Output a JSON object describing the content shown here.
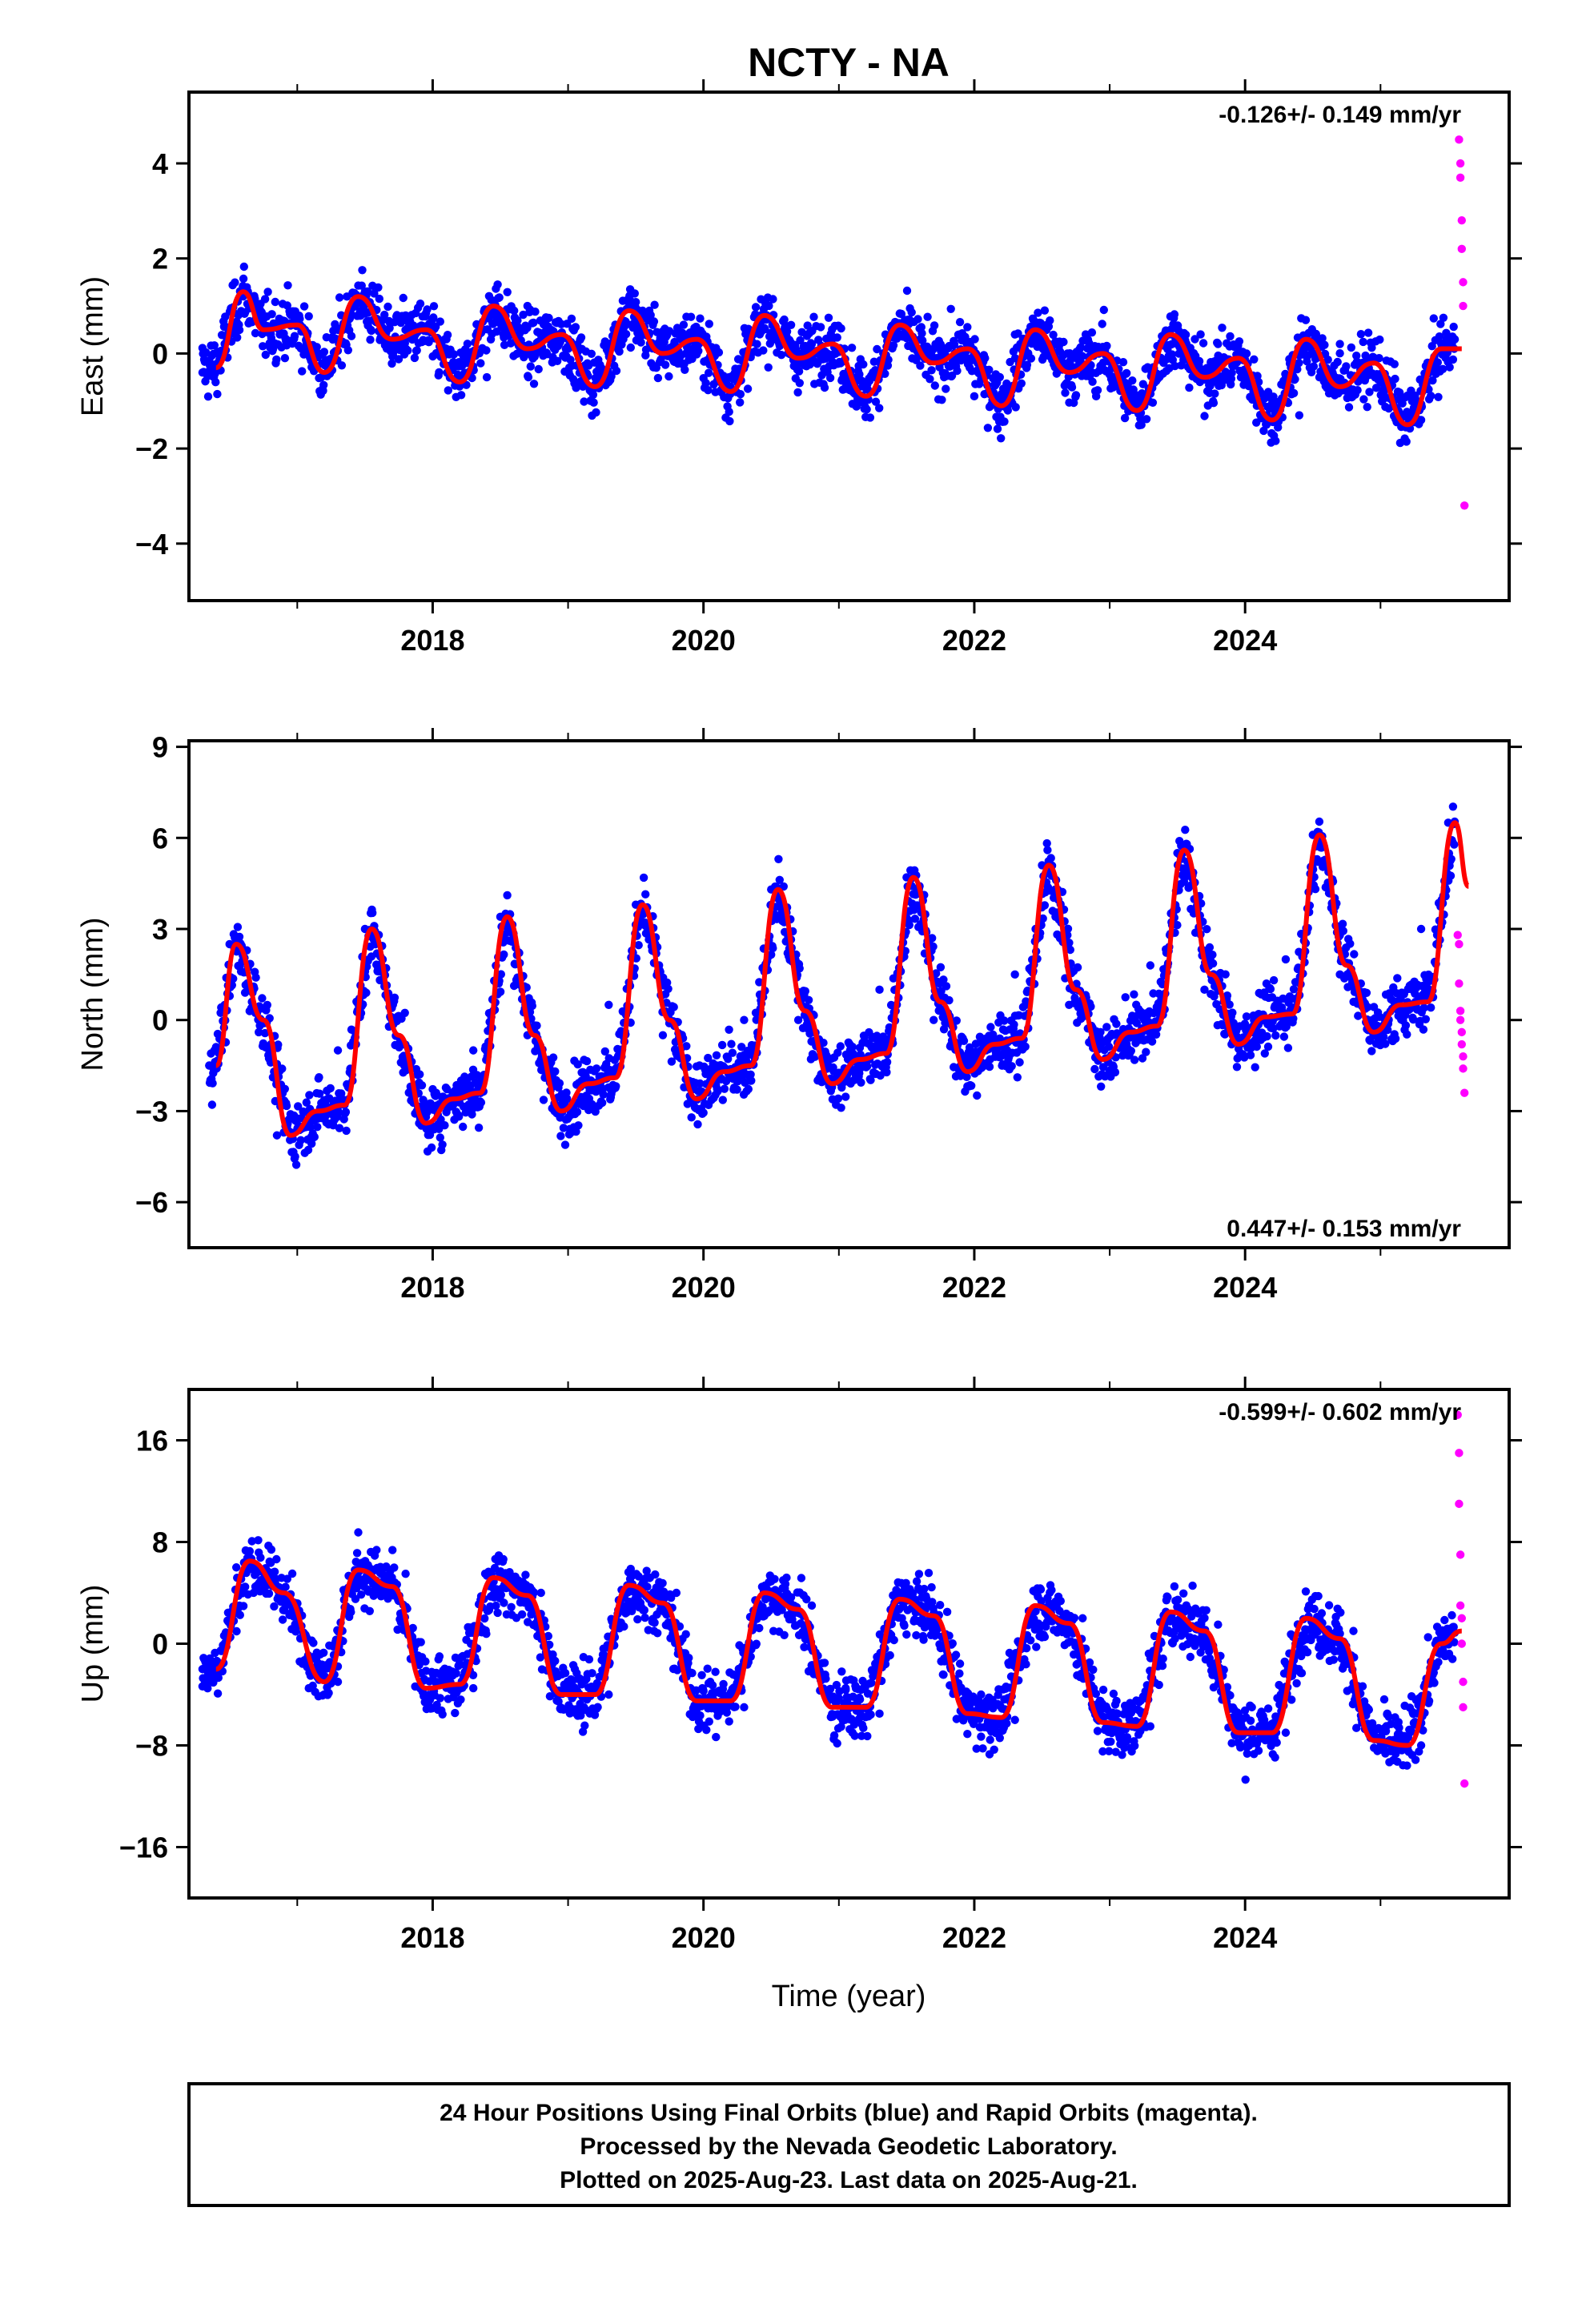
{
  "title": "NCTY - NA",
  "xlabel": "Time (year)",
  "footer": {
    "line1": "24 Hour Positions Using Final Orbits (blue) and Rapid Orbits (magenta).",
    "line2": "Processed by the Nevada Geodetic Laboratory.",
    "line3": "Plotted on 2025-Aug-23. Last data on 2025-Aug-21."
  },
  "colors": {
    "final_points": "#0000ff",
    "rapid_points": "#ff00ff",
    "model_fit": "#ff0000",
    "frame": "#000000"
  },
  "chart_data": [
    {
      "type": "scatter",
      "ylabel": "East (mm)",
      "rate": "-0.126+/- 0.149 mm/yr",
      "xlim": [
        2016.2,
        2025.95
      ],
      "ylim": [
        -5.2,
        5.5
      ],
      "xticks": [
        2018,
        2020,
        2022,
        2024
      ],
      "xtick_labels": [
        "2018",
        "2020",
        "2022",
        "2024"
      ],
      "yticks": [
        -4,
        -2,
        0,
        2,
        4
      ],
      "ytick_labels": [
        "−4",
        "−2",
        "0",
        "2",
        "4"
      ],
      "legend": "none",
      "grid": false,
      "series": [
        {
          "name": "Final Orbits",
          "color": "#0000ff",
          "kind": "points",
          "x": [
            2016.3,
            2016.6,
            2016.9,
            2017.2,
            2017.5,
            2017.8,
            2018.1,
            2018.4,
            2018.7,
            2019.0,
            2019.3,
            2019.6,
            2019.9,
            2020.2,
            2020.5,
            2020.8,
            2021.1,
            2021.4,
            2021.7,
            2022.0,
            2022.3,
            2022.6,
            2022.9,
            2023.2,
            2023.5,
            2023.8,
            2024.1,
            2024.4,
            2024.7,
            2025.0,
            2025.3,
            2025.5
          ],
          "y": [
            -0.4,
            1.2,
            0.6,
            -0.2,
            1.3,
            0.8,
            0.1,
            -0.5,
            1.0,
            0.3,
            -0.6,
            0.9,
            0.4,
            -0.7,
            0.7,
            0.2,
            -0.8,
            0.6,
            0.1,
            -0.9,
            0.4,
            -0.1,
            -0.9,
            -1.0,
            0.3,
            0.2,
            -0.6,
            -1.3,
            0.2,
            -0.6,
            -1.4,
            0.2
          ]
        },
        {
          "name": "Rapid Orbits",
          "color": "#ff00ff",
          "kind": "points",
          "x": [
            2025.58,
            2025.59,
            2025.59,
            2025.6,
            2025.6,
            2025.61,
            2025.61,
            2025.62
          ],
          "y": [
            4.5,
            4.0,
            3.7,
            2.8,
            2.2,
            1.5,
            1.0,
            -3.2
          ]
        },
        {
          "name": "Model fit",
          "color": "#ff0000",
          "kind": "line",
          "x": [
            2016.4,
            2016.6,
            2016.75,
            2017.0,
            2017.2,
            2017.45,
            2017.7,
            2017.95,
            2018.2,
            2018.45,
            2018.7,
            2018.95,
            2019.2,
            2019.45,
            2019.7,
            2019.95,
            2020.2,
            2020.45,
            2020.7,
            2020.95,
            2021.2,
            2021.45,
            2021.7,
            2021.95,
            2022.2,
            2022.45,
            2022.7,
            2022.95,
            2023.2,
            2023.45,
            2023.7,
            2023.95,
            2024.2,
            2024.45,
            2024.7,
            2024.95,
            2025.2,
            2025.45,
            2025.6
          ],
          "y": [
            -0.3,
            1.3,
            0.5,
            0.6,
            -0.4,
            1.2,
            0.3,
            0.5,
            -0.6,
            1.0,
            0.1,
            0.4,
            -0.7,
            0.9,
            0.0,
            0.3,
            -0.8,
            0.8,
            -0.1,
            0.2,
            -0.9,
            0.6,
            -0.2,
            0.1,
            -1.1,
            0.5,
            -0.4,
            0.0,
            -1.2,
            0.4,
            -0.5,
            -0.1,
            -1.4,
            0.3,
            -0.7,
            -0.2,
            -1.5,
            0.1,
            0.1
          ]
        }
      ]
    },
    {
      "type": "scatter",
      "ylabel": "North (mm)",
      "rate": "0.447+/- 0.153 mm/yr",
      "xlim": [
        2016.2,
        2025.95
      ],
      "ylim": [
        -7.5,
        9.2
      ],
      "xticks": [
        2018,
        2020,
        2022,
        2024
      ],
      "xtick_labels": [
        "2018",
        "2020",
        "2022",
        "2024"
      ],
      "yticks": [
        -6,
        -3,
        0,
        3,
        6,
        9
      ],
      "ytick_labels": [
        "−6",
        "−3",
        "0",
        "3",
        "6",
        "9"
      ],
      "legend": "none",
      "grid": false,
      "series": [
        {
          "name": "Final Orbits",
          "color": "#0000ff",
          "kind": "points",
          "x": [
            2016.35,
            2016.5,
            2016.65,
            2016.85,
            2017.1,
            2017.3,
            2017.5,
            2017.7,
            2017.9,
            2018.1,
            2018.3,
            2018.5,
            2018.7,
            2018.9,
            2019.1,
            2019.3,
            2019.5,
            2019.7,
            2019.9,
            2020.1,
            2020.3,
            2020.5,
            2020.7,
            2020.9,
            2021.1,
            2021.3,
            2021.5,
            2021.7,
            2021.9,
            2022.1,
            2022.3,
            2022.5,
            2022.7,
            2022.9,
            2023.1,
            2023.3,
            2023.5,
            2023.7,
            2023.9,
            2024.1,
            2024.3,
            2024.5,
            2024.7,
            2024.9,
            2025.1,
            2025.3,
            2025.5
          ],
          "y": [
            -1.5,
            2.5,
            1.0,
            -3.8,
            -3.0,
            -1.0,
            3.0,
            0.0,
            -3.4,
            -2.6,
            -1.0,
            3.4,
            -0.5,
            -3.0,
            -2.0,
            0.5,
            3.8,
            -0.5,
            -2.5,
            -1.5,
            0.0,
            4.3,
            0.0,
            -2.0,
            -1.2,
            1.0,
            4.7,
            0.0,
            -1.5,
            -0.6,
            1.5,
            5.1,
            0.5,
            -1.2,
            -0.3,
            1.8,
            5.5,
            1.0,
            -0.8,
            0.2,
            2.0,
            6.1,
            1.5,
            -0.3,
            0.6,
            3.0,
            6.5
          ]
        },
        {
          "name": "Rapid Orbits",
          "color": "#ff00ff",
          "kind": "points",
          "x": [
            2025.57,
            2025.58,
            2025.58,
            2025.59,
            2025.59,
            2025.6,
            2025.6,
            2025.61,
            2025.61,
            2025.62
          ],
          "y": [
            2.8,
            2.5,
            1.2,
            0.3,
            0.0,
            -0.4,
            -0.8,
            -1.2,
            -1.6,
            -2.4
          ]
        },
        {
          "name": "Model fit",
          "color": "#ff0000",
          "kind": "line",
          "x": [
            2016.4,
            2016.55,
            2016.75,
            2016.95,
            2017.15,
            2017.35,
            2017.55,
            2017.75,
            2017.95,
            2018.15,
            2018.35,
            2018.55,
            2018.75,
            2018.95,
            2019.15,
            2019.35,
            2019.55,
            2019.75,
            2019.95,
            2020.15,
            2020.35,
            2020.55,
            2020.75,
            2020.95,
            2021.15,
            2021.35,
            2021.55,
            2021.75,
            2021.95,
            2022.15,
            2022.35,
            2022.55,
            2022.75,
            2022.95,
            2023.15,
            2023.35,
            2023.55,
            2023.75,
            2023.95,
            2024.15,
            2024.35,
            2024.55,
            2024.75,
            2024.95,
            2025.15,
            2025.35,
            2025.55,
            2025.65
          ],
          "y": [
            -1.5,
            2.5,
            0.0,
            -3.8,
            -3.0,
            -2.8,
            3.0,
            -0.5,
            -3.4,
            -2.6,
            -2.4,
            3.4,
            -0.5,
            -3.0,
            -2.1,
            -1.9,
            3.8,
            0.0,
            -2.6,
            -1.7,
            -1.5,
            4.3,
            0.3,
            -2.1,
            -1.3,
            -1.1,
            4.7,
            0.6,
            -1.7,
            -0.8,
            -0.6,
            5.1,
            1.0,
            -1.3,
            -0.4,
            -0.2,
            5.6,
            1.5,
            -0.8,
            0.1,
            0.2,
            6.1,
            1.8,
            -0.4,
            0.5,
            0.6,
            6.5,
            4.4
          ]
        }
      ]
    },
    {
      "type": "scatter",
      "ylabel": "Up (mm)",
      "rate": "-0.599+/- 0.602 mm/yr",
      "xlim": [
        2016.2,
        2025.95
      ],
      "ylim": [
        -20,
        20
      ],
      "xticks": [
        2018,
        2020,
        2022,
        2024
      ],
      "xtick_labels": [
        "2018",
        "2020",
        "2022",
        "2024"
      ],
      "yticks": [
        -16,
        -8,
        0,
        8,
        16
      ],
      "ytick_labels": [
        "−16",
        "−8",
        "0",
        "8",
        "16"
      ],
      "legend": "none",
      "grid": false,
      "series": [
        {
          "name": "Final Orbits",
          "color": "#0000ff",
          "kind": "points",
          "x": [
            2016.3,
            2016.55,
            2016.8,
            2017.05,
            2017.3,
            2017.55,
            2017.8,
            2018.05,
            2018.3,
            2018.55,
            2018.8,
            2019.05,
            2019.3,
            2019.55,
            2019.8,
            2020.05,
            2020.3,
            2020.55,
            2020.8,
            2021.05,
            2021.3,
            2021.55,
            2021.8,
            2022.05,
            2022.3,
            2022.55,
            2022.8,
            2023.05,
            2023.3,
            2023.55,
            2023.8,
            2024.05,
            2024.3,
            2024.55,
            2024.8,
            2025.05,
            2025.3,
            2025.5
          ],
          "y": [
            -2.0,
            6.0,
            5.5,
            -1.5,
            -3.0,
            5.0,
            5.5,
            -1.0,
            -3.5,
            5.0,
            4.0,
            -2.0,
            -4.0,
            4.5,
            4.0,
            -3.0,
            -5.0,
            4.0,
            3.0,
            -3.5,
            -5.5,
            3.5,
            2.5,
            -4.0,
            -6.0,
            3.0,
            2.0,
            -4.5,
            -6.5,
            2.5,
            1.5,
            -5.0,
            -7.0,
            2.0,
            1.0,
            -5.5,
            -8.0,
            1.0
          ]
        },
        {
          "name": "Rapid Orbits",
          "color": "#ff00ff",
          "kind": "points",
          "x": [
            2025.57,
            2025.58,
            2025.58,
            2025.59,
            2025.59,
            2025.6,
            2025.6,
            2025.61,
            2025.61,
            2025.62
          ],
          "y": [
            18.0,
            15.0,
            11.0,
            7.0,
            3.0,
            2.0,
            0.0,
            -3.0,
            -5.0,
            -11.0
          ]
        },
        {
          "name": "Model fit",
          "color": "#ff0000",
          "kind": "line",
          "x": [
            2016.4,
            2016.65,
            2016.9,
            2017.2,
            2017.45,
            2017.7,
            2017.95,
            2018.2,
            2018.45,
            2018.7,
            2018.95,
            2019.2,
            2019.45,
            2019.7,
            2019.95,
            2020.2,
            2020.45,
            2020.7,
            2020.95,
            2021.2,
            2021.45,
            2021.7,
            2021.95,
            2022.2,
            2022.45,
            2022.7,
            2022.95,
            2023.2,
            2023.45,
            2023.7,
            2023.95,
            2024.2,
            2024.45,
            2024.7,
            2024.95,
            2025.2,
            2025.45,
            2025.6
          ],
          "y": [
            -2.0,
            6.5,
            4.0,
            -3.0,
            5.8,
            4.5,
            -3.5,
            -3.2,
            5.2,
            3.8,
            -4.0,
            -4.0,
            4.6,
            3.2,
            -4.5,
            -4.5,
            4.0,
            2.7,
            -5.0,
            -5.0,
            3.5,
            2.2,
            -5.5,
            -5.8,
            3.0,
            1.6,
            -6.2,
            -6.5,
            2.5,
            1.0,
            -7.0,
            -7.0,
            2.0,
            0.4,
            -7.6,
            -8.0,
            0.0,
            1.0
          ]
        }
      ]
    }
  ]
}
